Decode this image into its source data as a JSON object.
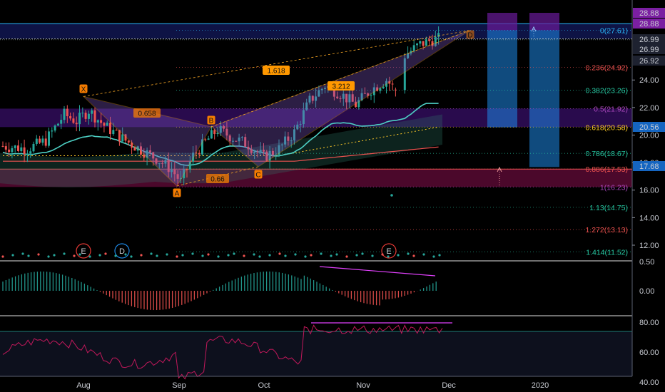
{
  "chart_data": {
    "type": "candlestick",
    "title": "",
    "x_labels": [
      "Aug",
      "Sep",
      "Oct",
      "Nov",
      "Dec",
      "2020"
    ],
    "main_axis_ticks": [
      "12.00",
      "14.00",
      "16.00",
      "18.00",
      "20.00",
      "22.00",
      "24.00"
    ],
    "main_axis_ylim": [
      11,
      29.4
    ],
    "price_badges": [
      {
        "value": "28.88",
        "color": "#7b1fa2"
      },
      {
        "value": "28.88",
        "color": "#7b1fa2"
      },
      {
        "value": "26.99",
        "color": "#1e2230"
      },
      {
        "value": "26.99",
        "color": "#1e2230"
      },
      {
        "value": "26.92",
        "color": "#1e2230"
      },
      {
        "value": "20.56",
        "color": "#1565c0"
      },
      {
        "value": "17.68",
        "color": "#1565c0"
      }
    ],
    "fib_levels": [
      {
        "text": "0(27.61)",
        "price": 27.61,
        "color": "#29b6f6"
      },
      {
        "text": "0.236(24.92)",
        "price": 24.92,
        "color": "#ef5350"
      },
      {
        "text": "0.382(23.26)",
        "price": 23.26,
        "color": "#26c6a0"
      },
      {
        "text": "0.5(21.92)",
        "price": 21.92,
        "color": "#ab47bc"
      },
      {
        "text": "0.618(20.58)",
        "price": 20.58,
        "color": "#ffca28"
      },
      {
        "text": "0.786(18.67)",
        "price": 18.67,
        "color": "#26c6a0"
      },
      {
        "text": "0.886(17.53)",
        "price": 17.53,
        "color": "#ef5350"
      },
      {
        "text": "1(16.23)",
        "price": 16.23,
        "color": "#ab47bc"
      },
      {
        "text": "1.13(14.75)",
        "price": 14.75,
        "color": "#26c6a0"
      },
      {
        "text": "1.272(13.13)",
        "price": 13.13,
        "color": "#ef5350"
      },
      {
        "text": "1.414(11.52)",
        "price": 11.52,
        "color": "#26c6a0"
      }
    ],
    "pattern_points": [
      {
        "label": "X",
        "date": "Aug 1",
        "price": 22.8
      },
      {
        "label": "A",
        "date": "Sep 1",
        "price": 16.3
      },
      {
        "label": "B",
        "date": "Sep 12",
        "price": 20.6
      },
      {
        "label": "C",
        "date": "Sep 27",
        "price": 17.7
      },
      {
        "label": "D",
        "date": "Nov 27",
        "price": 27.6
      }
    ],
    "pattern_ratios": [
      {
        "text": "0.658",
        "color": "#f57c00"
      },
      {
        "text": "0.66",
        "color": "#f57c00"
      },
      {
        "text": "1.618",
        "color": "#ff9800"
      },
      {
        "text": "3.212",
        "color": "#ff9800"
      }
    ],
    "event_markers": [
      {
        "text": "E",
        "color": "#e53935"
      },
      {
        "text": "D",
        "color": "#1e88e5"
      },
      {
        "text": "E",
        "color": "#e53935"
      }
    ],
    "oscillator_ticks": [
      "0.50",
      "0.00"
    ],
    "rsi_ticks": [
      "80.00",
      "60.00",
      "40.00"
    ],
    "colors": {
      "up": "#26a69a",
      "down": "#ef5350",
      "ma_fast": "#4dd0c4",
      "ma_slow": "#ef5350"
    }
  }
}
